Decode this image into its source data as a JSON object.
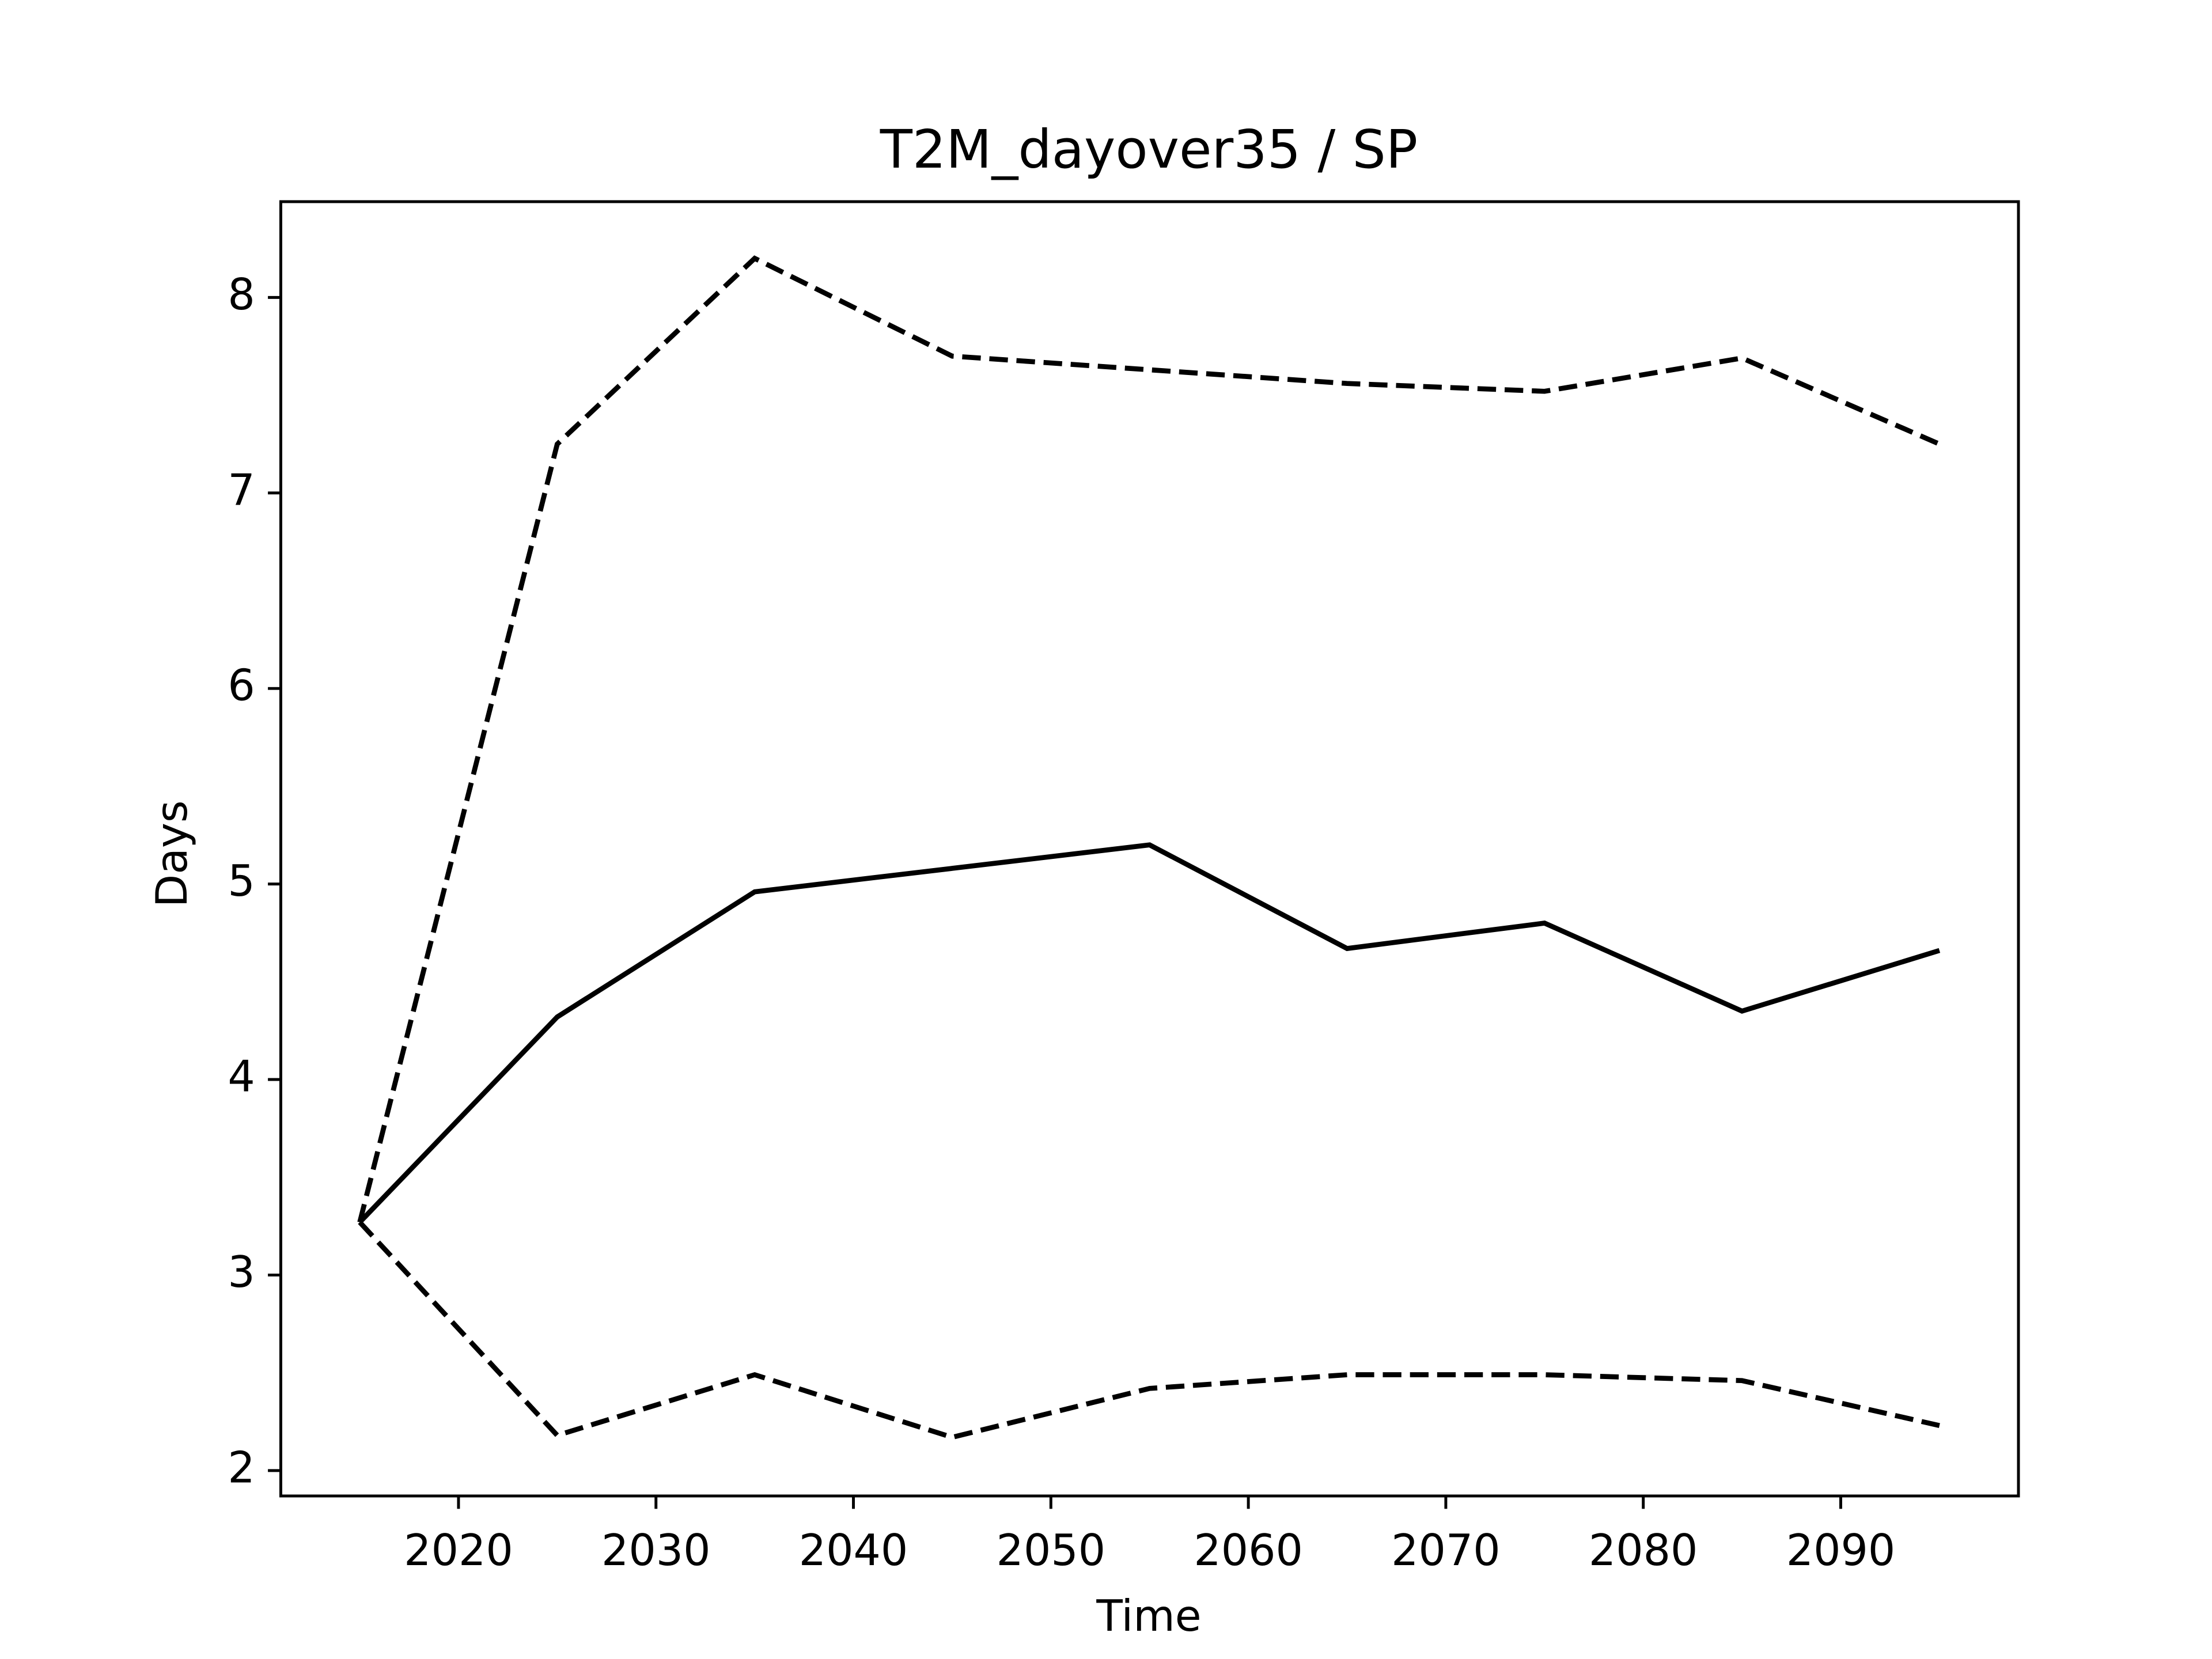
{
  "chart_data": {
    "type": "line",
    "title": "T2M_dayover35 / SP",
    "xlabel": "Time",
    "ylabel": "Days",
    "x": [
      2015,
      2025,
      2035,
      2045,
      2055,
      2065,
      2075,
      2085,
      2095
    ],
    "series": [
      {
        "color": "#000000",
        "style": "solid",
        "values": [
          3.27,
          4.32,
          4.96,
          5.08,
          5.2,
          4.67,
          4.8,
          4.35,
          4.66
        ]
      },
      {
        "color": "#000000",
        "style": "dashed",
        "values": [
          3.27,
          7.25,
          8.2,
          7.7,
          7.63,
          7.56,
          7.52,
          7.69,
          7.25
        ]
      },
      {
        "color": "#000000",
        "style": "dashed",
        "values": [
          3.27,
          2.18,
          2.49,
          2.17,
          2.42,
          2.49,
          2.49,
          2.46,
          2.23
        ]
      }
    ],
    "xlim": [
      2011,
      2099
    ],
    "xticks": [
      2020,
      2030,
      2040,
      2050,
      2060,
      2070,
      2080,
      2090
    ],
    "ylim": [
      1.87,
      8.49
    ],
    "yticks": [
      2,
      3,
      4,
      5,
      6,
      7,
      8
    ],
    "grid": false
  }
}
